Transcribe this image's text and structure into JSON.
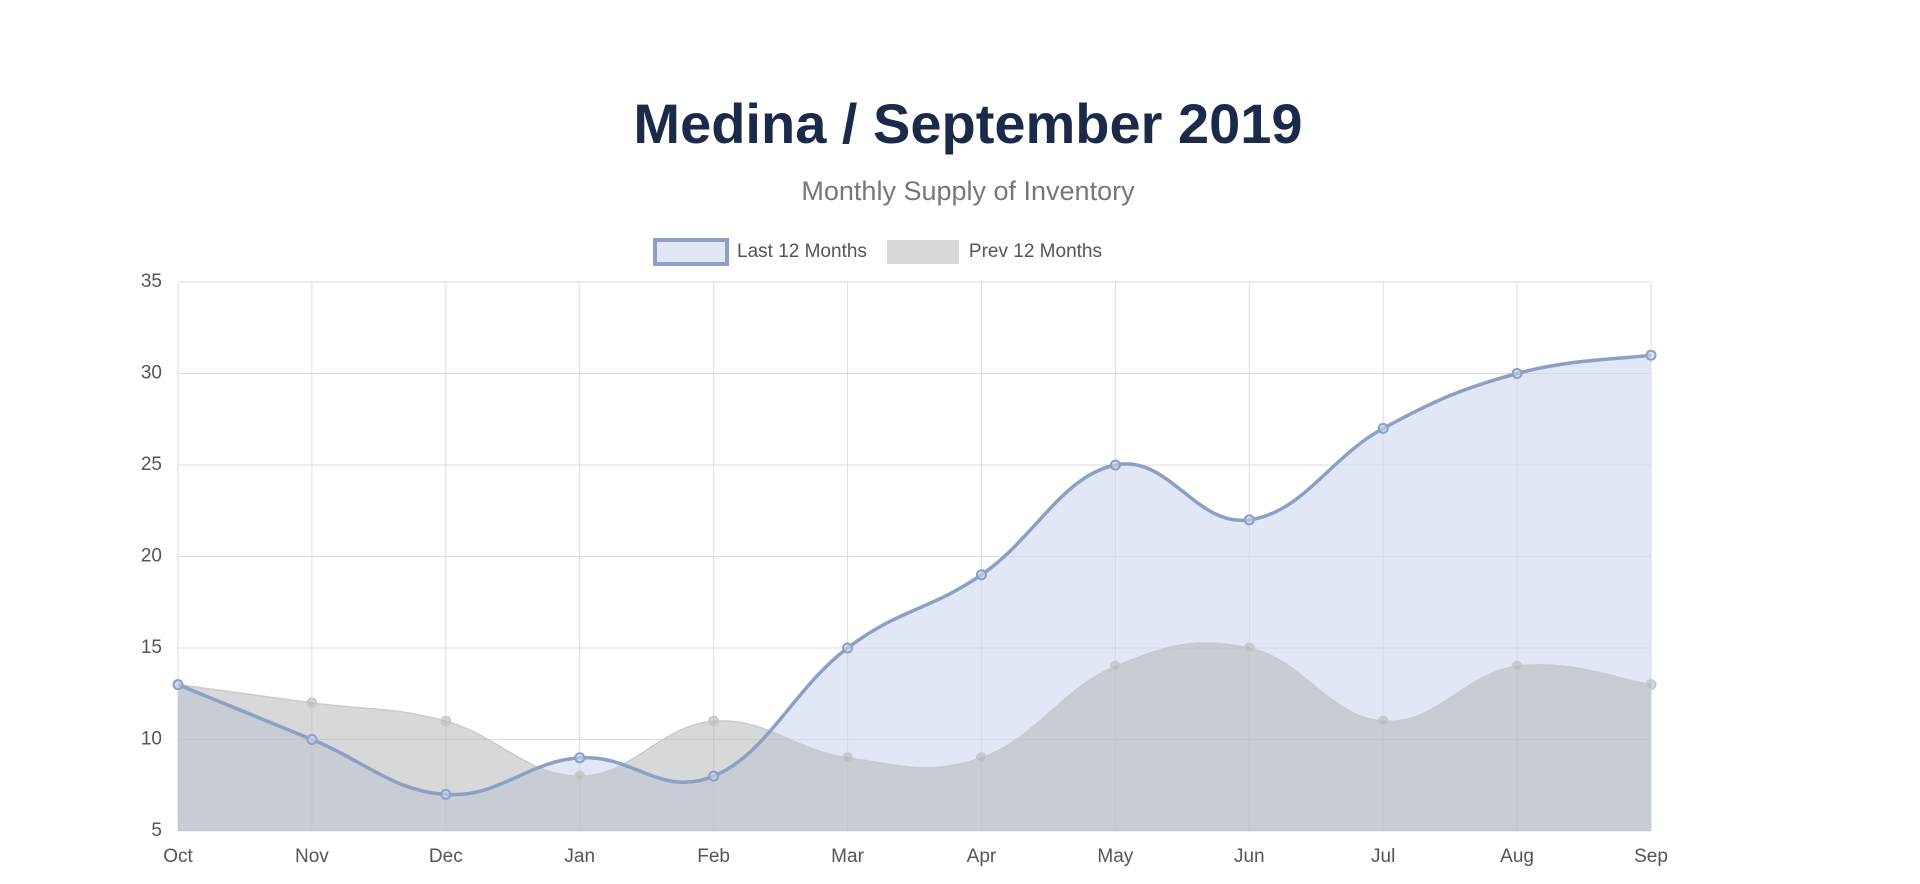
{
  "chart_data": {
    "type": "area",
    "title": "Medina / September 2019",
    "subtitle": "Monthly Supply of Inventory",
    "categories": [
      "Oct",
      "Nov",
      "Dec",
      "Jan",
      "Feb",
      "Mar",
      "Apr",
      "May",
      "Jun",
      "Jul",
      "Aug",
      "Sep"
    ],
    "series": [
      {
        "name": "Last 12 Months",
        "color": "#8c9fc4",
        "fill": "rgba(205,215,236,0.6)",
        "values": [
          13,
          10,
          7,
          9,
          8,
          15,
          19,
          25,
          22,
          27,
          30,
          31
        ]
      },
      {
        "name": "Prev 12 Months",
        "color": "#c9cacd",
        "fill": "rgba(175,177,182,0.5)",
        "values": [
          13,
          12,
          11,
          8,
          11,
          9,
          9,
          14,
          15,
          11,
          14,
          13
        ]
      }
    ],
    "ylim": [
      5,
      35
    ],
    "yticks": [
      5,
      10,
      15,
      20,
      25,
      30,
      35
    ],
    "grid": true,
    "legend": "top"
  }
}
